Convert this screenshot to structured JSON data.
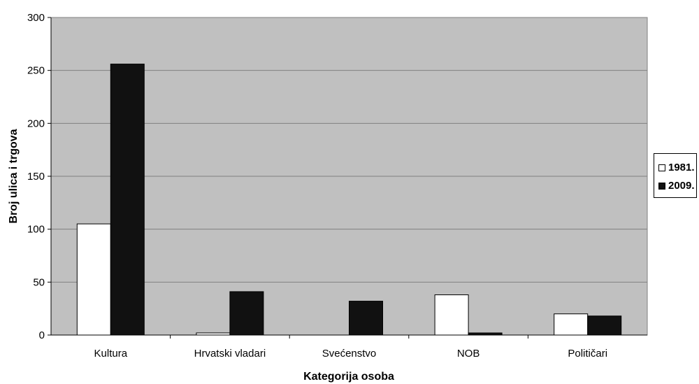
{
  "chart_data": {
    "type": "bar",
    "title": "",
    "xlabel": "Kategorija osoba",
    "ylabel": "Broj ulica i trgova",
    "categories": [
      "Kultura",
      "Hrvatski vladari",
      "Svećenstvo",
      "NOB",
      "Političari"
    ],
    "series": [
      {
        "name": "1981.",
        "values": [
          105,
          2,
          0,
          38,
          20
        ],
        "color": "#ffffff"
      },
      {
        "name": "2009.",
        "values": [
          256,
          41,
          32,
          2,
          18
        ],
        "color": "#111111"
      }
    ],
    "ylim": [
      0,
      300
    ],
    "yticks": [
      "0",
      "50",
      "100",
      "150",
      "200",
      "250",
      "300"
    ],
    "grid": true,
    "plot_background": "#c0c0c0",
    "legend_position": "right"
  }
}
